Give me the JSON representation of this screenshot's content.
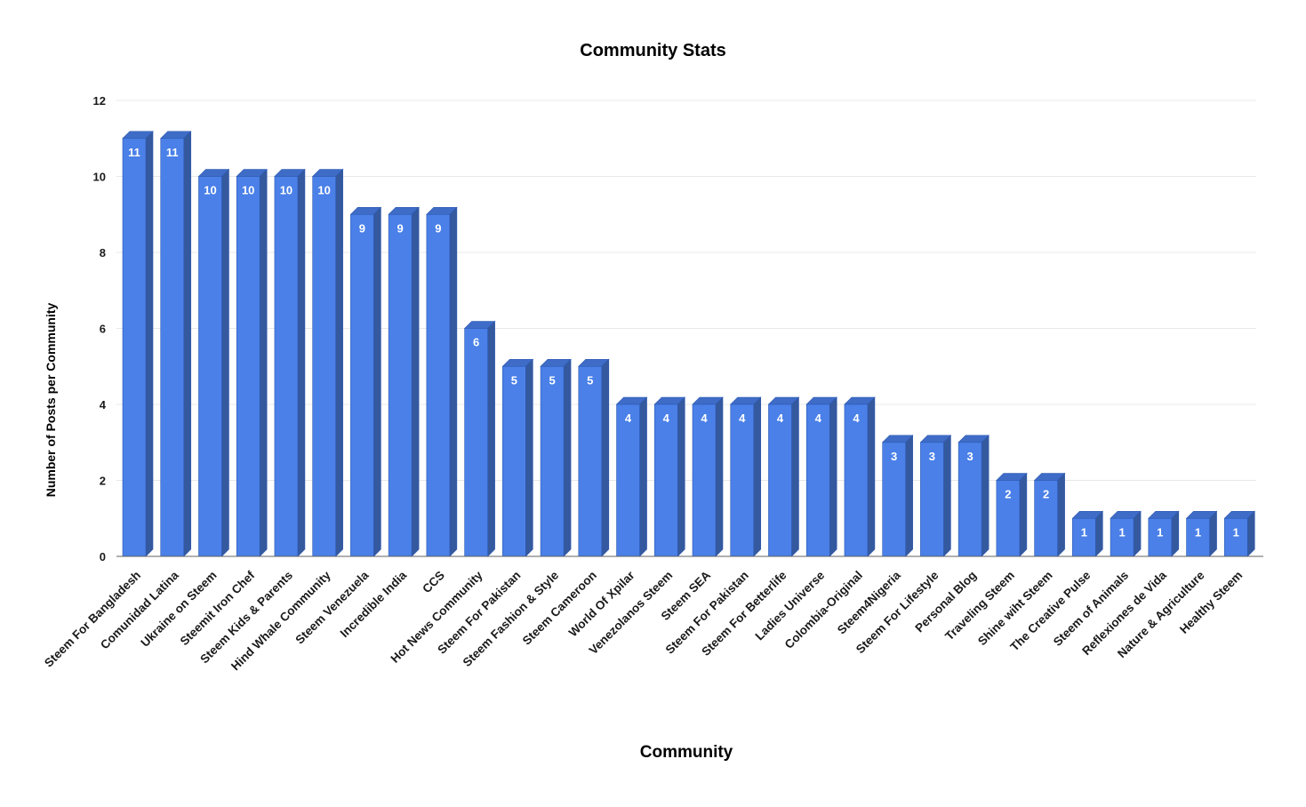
{
  "chart_data": {
    "type": "bar",
    "style_3d": true,
    "title": "Community Stats",
    "xlabel": "Community",
    "ylabel": "Number of Posts per Community",
    "categories": [
      "Steem For Bangladesh",
      "Comunidad Latina",
      "Ukraine on Steem",
      "Steemit Iron Chef",
      "Steem Kids & Parents",
      "Hind Whale Community",
      "Steem Venezuela",
      "Incredible India",
      "CCS",
      "Hot News Community",
      "Steem For Pakistan",
      "Steem Fashion & Style",
      "Steem Cameroon",
      "World Of Xpilar",
      "Venezolanos Steem",
      "Steem SEA",
      "Steem For Pakistan",
      "Steem For Betterlife",
      "Ladies Universe",
      "Colombia-Original",
      "Steem4Nigeria",
      "Steem For Lifestyle",
      "Personal Blog",
      "Traveling Steem",
      "Shine wiht Steem",
      "The Creative Pulse",
      "Steem of Animals",
      "Reflexiones de Vida",
      "Nature & Agriculture",
      "Healthy Steem"
    ],
    "values": [
      11,
      11,
      10,
      10,
      10,
      10,
      9,
      9,
      9,
      6,
      5,
      5,
      5,
      4,
      4,
      4,
      4,
      4,
      4,
      4,
      3,
      3,
      3,
      2,
      2,
      1,
      1,
      1,
      1,
      1
    ],
    "value_labels_shown": true,
    "ylim": [
      0,
      12
    ],
    "yticks": [
      0,
      2,
      4,
      6,
      8,
      10,
      12
    ],
    "grid": true,
    "legend": "none",
    "colors": {
      "bar_front": "#4a80e8",
      "bar_side": "#35599e",
      "bar_top": "#3e6cc7",
      "bar_stroke": "#2d59b0",
      "value_label": "#ffffff",
      "gridline": "#e8e8e8",
      "axis_line": "#616161",
      "tick_label": "#1a1a1a"
    }
  }
}
